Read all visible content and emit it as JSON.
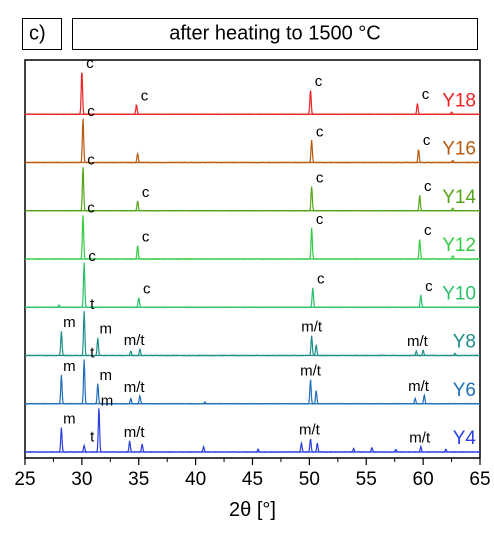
{
  "panel": {
    "letter": "c)",
    "title": "after heating to 1500 °C"
  },
  "colors": {
    "Y18": "#ee2222",
    "Y16": "#b85a10",
    "Y14": "#55a51a",
    "Y12": "#33cc44",
    "Y10": "#2cc06a",
    "Y8": "#1f8f8a",
    "Y6": "#1f6fb8",
    "Y4": "#2a3fe0"
  },
  "chart_data": {
    "type": "line",
    "title": "after heating to 1500 °C",
    "xlabel": "2θ [°]",
    "ylabel": "",
    "xlim": [
      25,
      65
    ],
    "x_ticks": [
      25,
      30,
      35,
      40,
      45,
      50,
      55,
      60,
      65
    ],
    "y_ticks_shown": false,
    "grid": false,
    "series": [
      {
        "name": "Y18",
        "peaks": [
          [
            30.0,
            1.0
          ],
          [
            34.8,
            0.22
          ],
          [
            50.1,
            0.55
          ],
          [
            59.5,
            0.25
          ],
          [
            62.5,
            0.05
          ]
        ],
        "annotations": [
          {
            "text": "c",
            "x": 30.0,
            "y": 1.0
          },
          {
            "text": "c",
            "x": 34.8,
            "y": 0.22
          },
          {
            "text": "c",
            "x": 50.1,
            "y": 0.55
          },
          {
            "text": "c",
            "x": 59.5,
            "y": 0.25
          }
        ]
      },
      {
        "name": "Y16",
        "peaks": [
          [
            30.1,
            1.0
          ],
          [
            34.9,
            0.2
          ],
          [
            50.2,
            0.5
          ],
          [
            59.6,
            0.3
          ],
          [
            62.6,
            0.05
          ]
        ],
        "annotations": [
          {
            "text": "c",
            "x": 30.1,
            "y": 1.0
          },
          {
            "text": "c",
            "x": 50.2,
            "y": 0.5
          },
          {
            "text": "c",
            "x": 59.6,
            "y": 0.3
          }
        ]
      },
      {
        "name": "Y14",
        "peaks": [
          [
            30.1,
            1.0
          ],
          [
            34.9,
            0.22
          ],
          [
            50.2,
            0.55
          ],
          [
            59.7,
            0.35
          ],
          [
            62.6,
            0.06
          ]
        ],
        "annotations": [
          {
            "text": "c",
            "x": 30.1,
            "y": 1.0
          },
          {
            "text": "c",
            "x": 34.9,
            "y": 0.22
          },
          {
            "text": "c",
            "x": 50.2,
            "y": 0.55
          },
          {
            "text": "c",
            "x": 59.7,
            "y": 0.35
          }
        ]
      },
      {
        "name": "Y12",
        "peaks": [
          [
            30.1,
            1.0
          ],
          [
            34.9,
            0.3
          ],
          [
            50.2,
            0.7
          ],
          [
            59.7,
            0.45
          ],
          [
            62.6,
            0.07
          ]
        ],
        "annotations": [
          {
            "text": "c",
            "x": 30.1,
            "y": 1.0
          },
          {
            "text": "c",
            "x": 34.9,
            "y": 0.3
          },
          {
            "text": "c",
            "x": 50.2,
            "y": 0.7
          },
          {
            "text": "c",
            "x": 59.7,
            "y": 0.45
          }
        ]
      },
      {
        "name": "Y10",
        "peaks": [
          [
            30.2,
            1.0
          ],
          [
            35.0,
            0.22
          ],
          [
            50.3,
            0.45
          ],
          [
            59.8,
            0.28
          ],
          [
            28.0,
            0.05
          ]
        ],
        "annotations": [
          {
            "text": "c",
            "x": 30.2,
            "y": 1.0
          },
          {
            "text": "c",
            "x": 35.0,
            "y": 0.22
          },
          {
            "text": "c",
            "x": 50.3,
            "y": 0.45
          },
          {
            "text": "c",
            "x": 59.8,
            "y": 0.28
          }
        ]
      },
      {
        "name": "Y8",
        "peaks": [
          [
            28.2,
            0.55
          ],
          [
            30.2,
            1.0
          ],
          [
            31.4,
            0.4
          ],
          [
            34.3,
            0.1
          ],
          [
            35.1,
            0.15
          ],
          [
            50.2,
            0.45
          ],
          [
            50.6,
            0.25
          ],
          [
            59.4,
            0.1
          ],
          [
            60.0,
            0.12
          ],
          [
            62.8,
            0.05
          ]
        ],
        "annotations": [
          {
            "text": "m",
            "x": 28.2,
            "y": 0.55
          },
          {
            "text": "t",
            "x": 30.2,
            "y": 1.0
          },
          {
            "text": "m",
            "x": 31.4,
            "y": 0.4
          },
          {
            "text": "m/t",
            "x": 34.6,
            "y": 0.15
          },
          {
            "text": "m/t",
            "x": 50.2,
            "y": 0.45
          },
          {
            "text": "m/t",
            "x": 59.5,
            "y": 0.12
          }
        ]
      },
      {
        "name": "Y6",
        "peaks": [
          [
            28.2,
            0.65
          ],
          [
            30.2,
            1.0
          ],
          [
            31.4,
            0.45
          ],
          [
            34.3,
            0.12
          ],
          [
            35.1,
            0.18
          ],
          [
            50.1,
            0.55
          ],
          [
            50.6,
            0.3
          ],
          [
            59.3,
            0.12
          ],
          [
            60.1,
            0.2
          ],
          [
            40.8,
            0.04
          ]
        ],
        "annotations": [
          {
            "text": "m",
            "x": 28.2,
            "y": 0.65
          },
          {
            "text": "t",
            "x": 30.2,
            "y": 1.0
          },
          {
            "text": "m",
            "x": 31.4,
            "y": 0.45
          },
          {
            "text": "m/t",
            "x": 34.6,
            "y": 0.18
          },
          {
            "text": "m/t",
            "x": 50.1,
            "y": 0.55
          },
          {
            "text": "m/t",
            "x": 59.6,
            "y": 0.2
          }
        ]
      },
      {
        "name": "Y4",
        "peaks": [
          [
            28.2,
            0.55
          ],
          [
            30.2,
            0.15
          ],
          [
            31.5,
            1.0
          ],
          [
            34.2,
            0.25
          ],
          [
            35.3,
            0.18
          ],
          [
            40.7,
            0.12
          ],
          [
            45.5,
            0.06
          ],
          [
            49.3,
            0.2
          ],
          [
            50.1,
            0.3
          ],
          [
            50.7,
            0.2
          ],
          [
            53.9,
            0.08
          ],
          [
            55.5,
            0.1
          ],
          [
            57.6,
            0.06
          ],
          [
            59.8,
            0.12
          ],
          [
            62.0,
            0.06
          ]
        ],
        "annotations": [
          {
            "text": "m",
            "x": 28.2,
            "y": 0.55
          },
          {
            "text": "t",
            "x": 30.2,
            "y": 0.15
          },
          {
            "text": "m",
            "x": 31.5,
            "y": 1.0
          },
          {
            "text": "m/t",
            "x": 34.6,
            "y": 0.25
          },
          {
            "text": "m/t",
            "x": 50.0,
            "y": 0.3
          },
          {
            "text": "m/t",
            "x": 59.7,
            "y": 0.12
          }
        ]
      }
    ]
  }
}
